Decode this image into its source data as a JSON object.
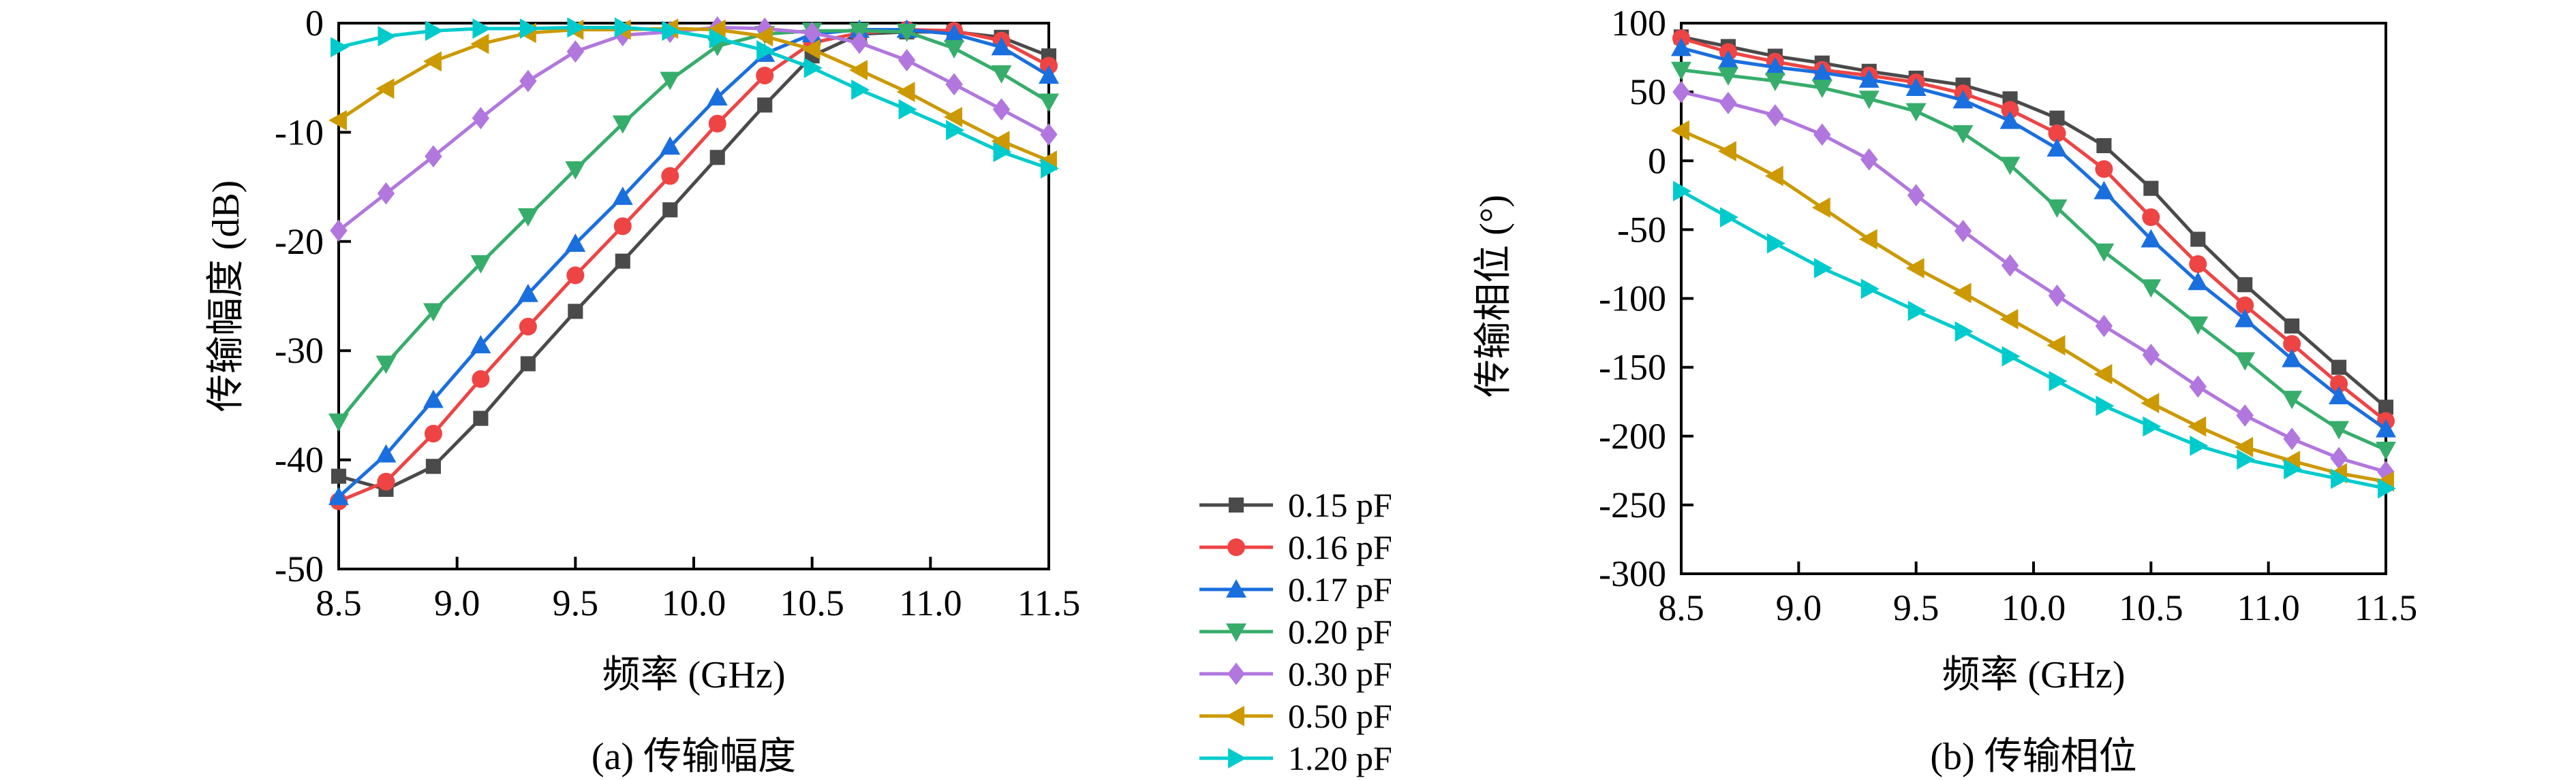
{
  "x": [
    8.5,
    8.7,
    8.9,
    9.1,
    9.3,
    9.5,
    9.7,
    9.9,
    10.1,
    10.3,
    10.5,
    10.7,
    10.9,
    11.1,
    11.3,
    11.5
  ],
  "legend": [
    {
      "label": "0.15 pF",
      "color": "#4a4a4a",
      "marker": "square"
    },
    {
      "label": "0.16 pF",
      "color": "#ee4444",
      "marker": "circle"
    },
    {
      "label": "0.17 pF",
      "color": "#1a6fdf",
      "marker": "triangle-up"
    },
    {
      "label": "0.20 pF",
      "color": "#37ad6b",
      "marker": "triangle-down"
    },
    {
      "label": "0.30 pF",
      "color": "#b177de",
      "marker": "diamond"
    },
    {
      "label": "0.50 pF",
      "color": "#cc9900",
      "marker": "triangle-left"
    },
    {
      "label": "1.20 pF",
      "color": "#00cbcc",
      "marker": "triangle-right"
    }
  ],
  "chart_data": [
    {
      "type": "line",
      "caption": "(a) 传输幅度",
      "xlabel": "频率 (GHz)",
      "ylabel": "传输幅度 (dB)",
      "xlim": [
        8.5,
        11.5
      ],
      "ylim": [
        -50,
        0
      ],
      "xticks": [
        "8.5",
        "9.0",
        "9.5",
        "10.0",
        "10.5",
        "11.0",
        "11.5"
      ],
      "yticks": [
        "0",
        "-10",
        "-20",
        "-30",
        "-40",
        "-50"
      ],
      "series": [
        {
          "name": "0.15 pF",
          "values": [
            -41.5,
            -42.7,
            -40.6,
            -36.2,
            -31.2,
            -26.4,
            -21.8,
            -17.1,
            -12.3,
            -7.5,
            -3.0,
            -1.0,
            -0.8,
            -0.8,
            -1.3,
            -3.0
          ]
        },
        {
          "name": "0.16 pF",
          "values": [
            -43.8,
            -42.0,
            -37.6,
            -32.6,
            -27.8,
            -23.1,
            -18.6,
            -14.0,
            -9.2,
            -4.8,
            -1.8,
            -0.9,
            -0.6,
            -0.7,
            -1.6,
            -3.9
          ]
        },
        {
          "name": "0.17 pF",
          "values": [
            -43.4,
            -39.5,
            -34.5,
            -29.5,
            -24.8,
            -20.2,
            -15.9,
            -11.3,
            -6.8,
            -2.8,
            -1.0,
            -0.6,
            -0.6,
            -1.0,
            -2.2,
            -4.8
          ]
        },
        {
          "name": "0.20 pF",
          "values": [
            -36.5,
            -31.2,
            -26.4,
            -22.0,
            -17.7,
            -13.4,
            -9.2,
            -5.2,
            -2.1,
            -1.0,
            -0.7,
            -0.7,
            -0.8,
            -2.3,
            -4.6,
            -7.2
          ]
        },
        {
          "name": "0.30 pF",
          "values": [
            -19.0,
            -15.6,
            -12.2,
            -8.7,
            -5.3,
            -2.6,
            -1.1,
            -0.8,
            -0.4,
            -0.5,
            -0.9,
            -1.8,
            -3.4,
            -5.6,
            -7.9,
            -10.2
          ]
        },
        {
          "name": "0.50 pF",
          "values": [
            -8.9,
            -6.0,
            -3.5,
            -1.9,
            -0.9,
            -0.6,
            -0.6,
            -0.5,
            -0.6,
            -1.2,
            -2.4,
            -4.3,
            -6.3,
            -8.6,
            -10.8,
            -12.6
          ]
        },
        {
          "name": "1.20 pF",
          "values": [
            -2.2,
            -1.2,
            -0.7,
            -0.5,
            -0.5,
            -0.4,
            -0.4,
            -0.7,
            -1.4,
            -2.5,
            -4.1,
            -6.1,
            -7.9,
            -9.8,
            -11.8,
            -13.3
          ]
        }
      ]
    },
    {
      "type": "line",
      "caption": "(b) 传输相位",
      "xlabel": "频率 (GHz)",
      "ylabel": "传输相位 (°)",
      "xlim": [
        8.5,
        11.5
      ],
      "ylim": [
        -300,
        100
      ],
      "xticks": [
        "8.5",
        "9.0",
        "9.5",
        "10.0",
        "10.5",
        "11.0",
        "11.5"
      ],
      "yticks": [
        "100",
        "50",
        "0",
        "-50",
        "-100",
        "-150",
        "-200",
        "-250",
        "-300"
      ],
      "series": [
        {
          "name": "0.15 pF",
          "values": [
            90,
            83,
            76,
            71,
            65,
            60,
            55,
            45,
            31,
            11,
            -20,
            -57,
            -90,
            -120,
            -150,
            -179
          ]
        },
        {
          "name": "0.16 pF",
          "values": [
            89,
            79,
            72,
            66,
            62,
            57,
            49,
            37,
            20,
            -6,
            -41,
            -75,
            -105,
            -133,
            -162,
            -189
          ]
        },
        {
          "name": "0.17 pF",
          "values": [
            82,
            73,
            68,
            64,
            59,
            53,
            44,
            29,
            9,
            -22,
            -57,
            -88,
            -115,
            -144,
            -171,
            -195
          ]
        },
        {
          "name": "0.20 pF",
          "values": [
            66,
            62,
            58,
            53,
            45,
            36,
            20,
            -3,
            -34,
            -66,
            -92,
            -119,
            -145,
            -173,
            -195,
            -210
          ]
        },
        {
          "name": "0.30 pF",
          "values": [
            50,
            42,
            33,
            19,
            1,
            -25,
            -51,
            -76,
            -98,
            -120,
            -141,
            -164,
            -185,
            -202,
            -216,
            -226
          ]
        },
        {
          "name": "0.50 pF",
          "values": [
            22,
            7,
            -11,
            -34,
            -57,
            -78,
            -96,
            -115,
            -134,
            -155,
            -176,
            -193,
            -208,
            -218,
            -227,
            -233
          ]
        },
        {
          "name": "1.20 pF",
          "values": [
            -22,
            -41,
            -60,
            -78,
            -93,
            -109,
            -124,
            -142,
            -160,
            -178,
            -193,
            -207,
            -217,
            -224,
            -231,
            -238
          ]
        }
      ]
    }
  ]
}
